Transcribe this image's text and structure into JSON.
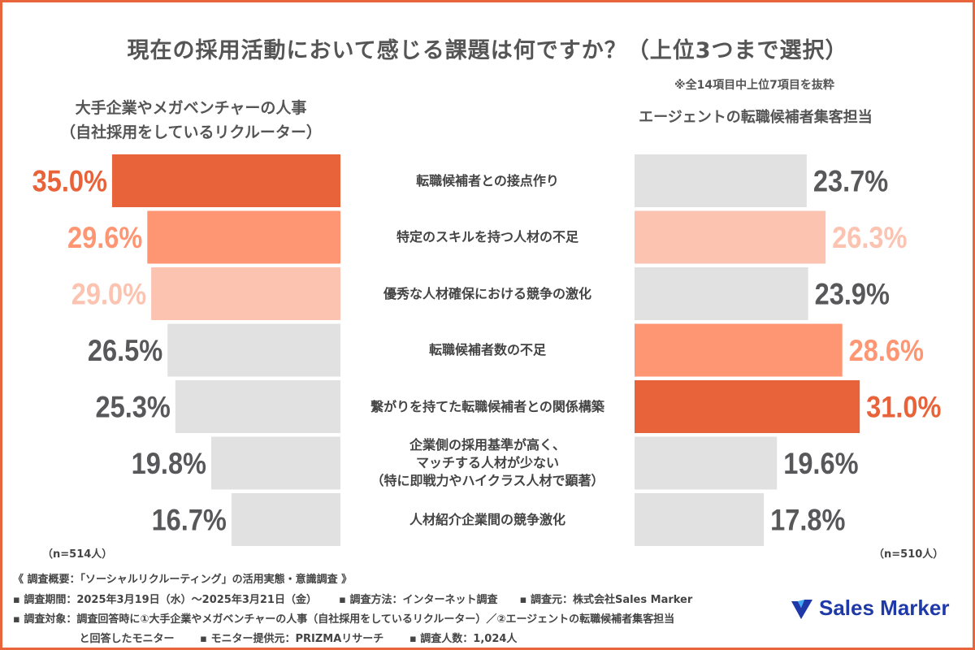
{
  "title": "現在の採用活動において感じる課題は何ですか？（上位3つまで選択）",
  "note": "※全14項目中上位7項目を抜粋",
  "left_header": [
    "大手企業やメガベンチャーの人事",
    "（自社採用をしているリクルーター）"
  ],
  "right_header": "エージェントの転職候補者集客担当",
  "left_n": "（n=514人）",
  "right_n": "（n=510人）",
  "colors": {
    "frame": "#e8643a",
    "rank1": "#e8633a",
    "rank2": "#ff9673",
    "rank3": "#fcc3b0",
    "other": "#e2e1e2",
    "other_text": "#58575a"
  },
  "chart_data": {
    "type": "bar",
    "orientation": "horizontal-butterfly",
    "categories": [
      "転職候補者との接点作り",
      "特定のスキルを持つ人材の不足",
      "優秀な人材確保における競争の激化",
      "転職候補者数の不足",
      "繋がりを持てた転職候補者との関係構築",
      "企業側の採用基準が高く、\nマッチする人材が少ない\n（特に即戦力やハイクラス人材で顕著）",
      "人材紹介企業間の競争激化"
    ],
    "series": [
      {
        "name": "大手企業やメガベンチャーの人事（自社採用をしているリクルーター）",
        "values": [
          35.0,
          29.6,
          29.0,
          26.5,
          25.3,
          19.8,
          16.7
        ],
        "labels": [
          "35.0%",
          "29.6%",
          "29.0%",
          "26.5%",
          "25.3%",
          "19.8%",
          "16.7%"
        ],
        "rank": [
          1,
          2,
          3,
          0,
          0,
          0,
          0
        ]
      },
      {
        "name": "エージェントの転職候補者集客担当",
        "values": [
          23.7,
          26.3,
          23.9,
          28.6,
          31.0,
          19.6,
          17.8
        ],
        "labels": [
          "23.7%",
          "26.3%",
          "23.9%",
          "28.6%",
          "31.0%",
          "19.6%",
          "17.8%"
        ],
        "rank": [
          0,
          3,
          0,
          2,
          1,
          0,
          0
        ]
      }
    ],
    "unit": "%"
  },
  "footer": {
    "line1": "《 調査概要：「ソーシャルリクルーティング」の活用実態・意識調査 》",
    "line2": "▪ 調査期間：2025年3月19日（水）～2025年3月21日（金）      ▪ 調査方法：インターネット調査      ▪ 調査元：株式会社Sales Marker",
    "line3": "▪ 調査対象：調査回答時に①大手企業やメガベンチャーの人事（自社採用をしているリクルーター）／②エージェントの転職候補者集客担当",
    "line4": "                  と回答したモニター       ▪ モニター提供元：PRIZMAリサーチ       ▪ 調査人数：1,024人"
  },
  "logo": "Sales Marker"
}
